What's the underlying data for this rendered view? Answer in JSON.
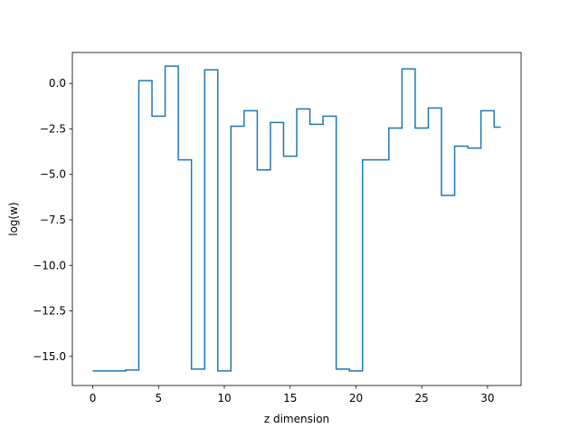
{
  "chart_data": {
    "type": "line",
    "title": "",
    "xlabel": "z dimension",
    "ylabel": "log(w)",
    "xlim": [
      -1.55,
      32.55
    ],
    "ylim": [
      -16.6,
      1.7
    ],
    "xticks": [
      0,
      5,
      10,
      15,
      20,
      25,
      30
    ],
    "xtick_labels": [
      "0",
      "5",
      "10",
      "15",
      "20",
      "25",
      "30"
    ],
    "yticks": [
      0.0,
      -2.5,
      -5.0,
      -7.5,
      -10.0,
      -12.5,
      -15.0
    ],
    "ytick_labels": [
      "0.0",
      "−2.5",
      "−5.0",
      "−7.5",
      "−10.0",
      "−12.5",
      "−15.0"
    ],
    "grid": false,
    "legend": false,
    "drawstyle": "steps-mid",
    "line_color": "#1f77b4",
    "series": [
      {
        "x": [
          0,
          1,
          2,
          3,
          4,
          5,
          6,
          7,
          8,
          9,
          10,
          11,
          12,
          13,
          14,
          15,
          16,
          17,
          18,
          19,
          20,
          21,
          22,
          23,
          24,
          25,
          26,
          27,
          28,
          29,
          30,
          31
        ],
        "values": [
          -15.8,
          -15.8,
          -15.8,
          -15.75,
          0.15,
          -1.8,
          0.95,
          -4.2,
          -15.7,
          0.75,
          -15.8,
          -2.35,
          -1.5,
          -4.75,
          -2.15,
          -4.0,
          -1.4,
          -2.25,
          -1.8,
          -15.7,
          -15.8,
          -4.2,
          -4.2,
          -2.45,
          0.8,
          -2.45,
          -1.35,
          -6.15,
          -3.45,
          -3.55,
          -1.5,
          -2.4
        ]
      }
    ]
  }
}
